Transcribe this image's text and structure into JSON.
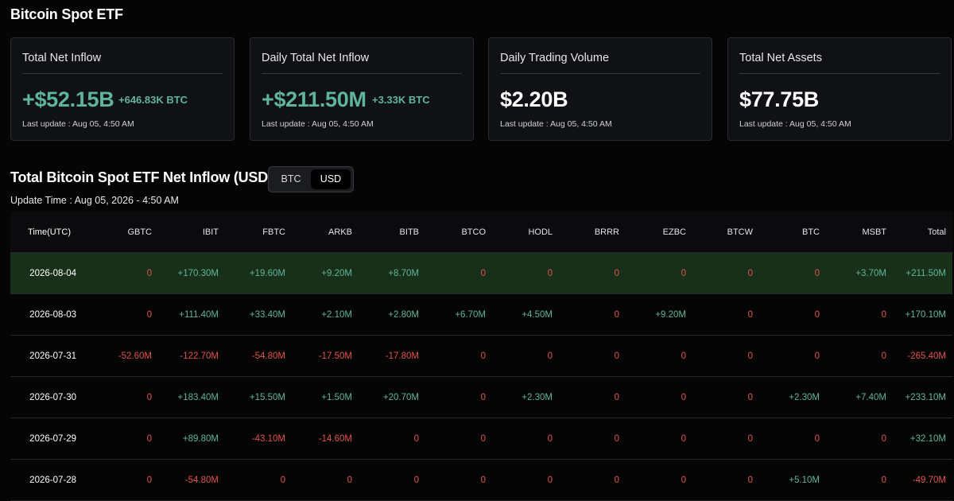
{
  "page_title": "Bitcoin Spot ETF",
  "cards": [
    {
      "title": "Total Net Inflow",
      "value": "+$52.15B",
      "sub": "+646.83K BTC",
      "update": "Last update : Aug 05, 4:50 AM",
      "green": true
    },
    {
      "title": "Daily Total Net Inflow",
      "value": "+$211.50M",
      "sub": "+3.33K BTC",
      "update": "Last update : Aug 05, 4:50 AM",
      "green": true
    },
    {
      "title": "Daily Trading Volume",
      "value": "$2.20B",
      "sub": "",
      "update": "Last update : Aug 05, 4:50 AM",
      "green": false
    },
    {
      "title": "Total Net Assets",
      "value": "$77.75B",
      "sub": "",
      "update": "Last update : Aug 05, 4:50 AM",
      "green": false
    }
  ],
  "section_title": "Total Bitcoin Spot ETF Net Inflow (USD)",
  "toggle": {
    "btc_label": "BTC",
    "usd_label": "USD",
    "selected": "USD"
  },
  "update_time": "Update Time : Aug 05, 2026 - 4:50 AM",
  "table": {
    "columns": [
      "Time(UTC)",
      "GBTC",
      "IBIT",
      "FBTC",
      "ARKB",
      "BITB",
      "BTCO",
      "HODL",
      "BRRR",
      "EZBC",
      "BTCW",
      "BTC",
      "MSBT",
      "Total"
    ],
    "rows": [
      [
        "2026-08-04",
        "0",
        "+170.30M",
        "+19.60M",
        "+9.20M",
        "+8.70M",
        "0",
        "0",
        "0",
        "0",
        "0",
        "0",
        "+3.70M",
        "+211.50M"
      ],
      [
        "2026-08-03",
        "0",
        "+111.40M",
        "+33.40M",
        "+2.10M",
        "+2.80M",
        "+6.70M",
        "+4.50M",
        "0",
        "+9.20M",
        "0",
        "0",
        "0",
        "+170.10M"
      ],
      [
        "2026-07-31",
        "-52.60M",
        "-122.70M",
        "-54.80M",
        "-17.50M",
        "-17.80M",
        "0",
        "0",
        "0",
        "0",
        "0",
        "0",
        "0",
        "-265.40M"
      ],
      [
        "2026-07-30",
        "0",
        "+183.40M",
        "+15.50M",
        "+1.50M",
        "+20.70M",
        "0",
        "+2.30M",
        "0",
        "0",
        "0",
        "+2.30M",
        "+7.40M",
        "+233.10M"
      ],
      [
        "2026-07-29",
        "0",
        "+89.80M",
        "-43.10M",
        "-14.60M",
        "0",
        "0",
        "0",
        "0",
        "0",
        "0",
        "0",
        "0",
        "+32.10M"
      ],
      [
        "2026-07-28",
        "0",
        "-54.80M",
        "0",
        "0",
        "0",
        "0",
        "0",
        "0",
        "0",
        "0",
        "+5.10M",
        "0",
        "-49.70M"
      ]
    ],
    "highlight_row": 0
  },
  "colors": {
    "positive": "#5fb59a",
    "negative": "#e0524d",
    "highlight": "#18301a"
  }
}
